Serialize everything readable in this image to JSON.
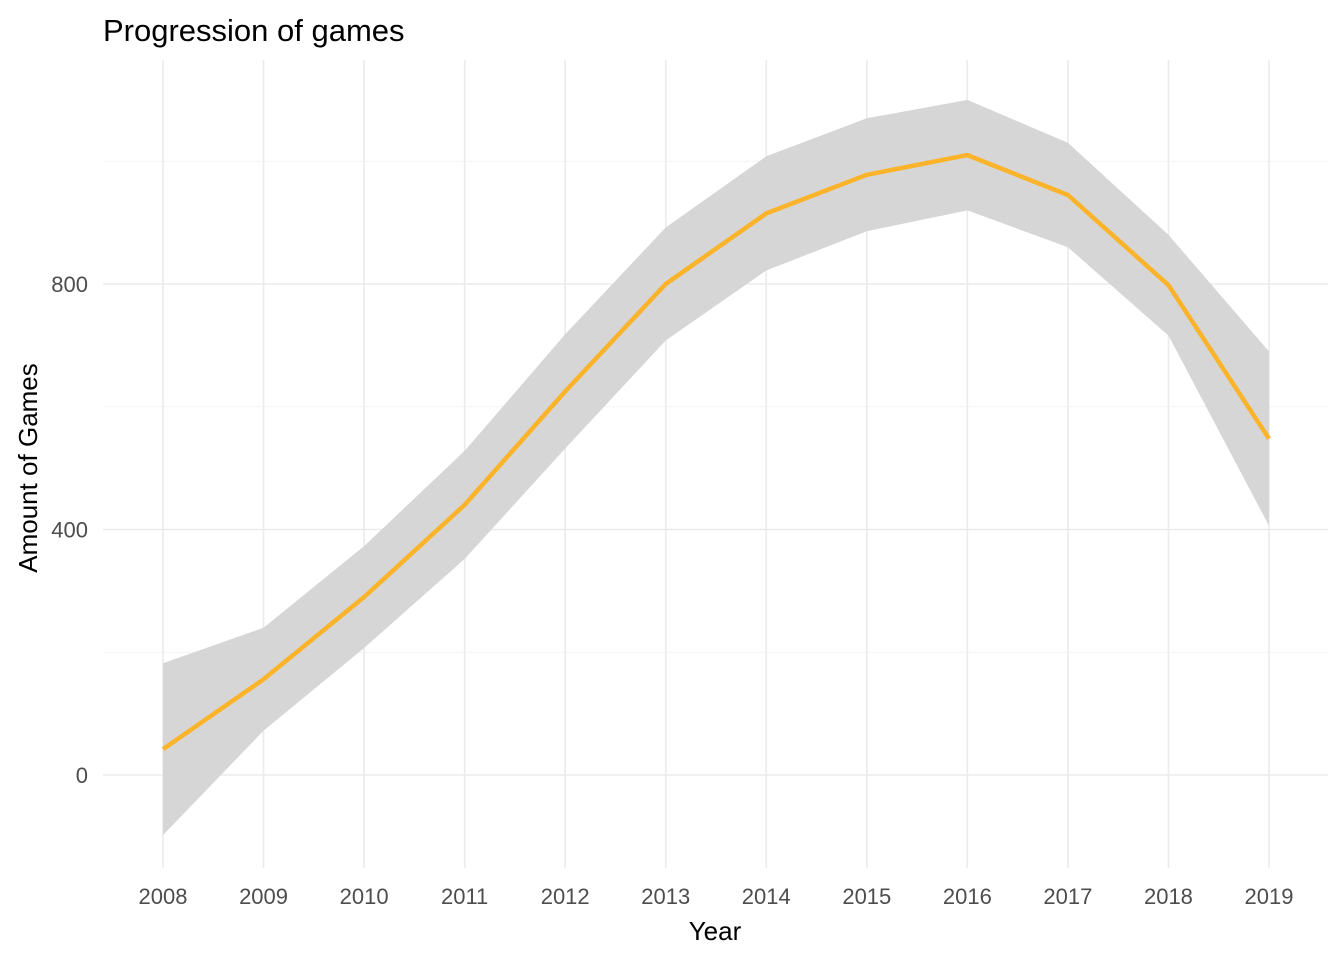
{
  "chart_data": {
    "type": "line",
    "title": "Progression of games",
    "xlabel": "Year",
    "ylabel": "Amount of Games",
    "x": [
      2008,
      2009,
      2010,
      2011,
      2012,
      2013,
      2014,
      2015,
      2016,
      2017,
      2018,
      2019
    ],
    "x_ticks": [
      "2008",
      "2009",
      "2010",
      "2011",
      "2012",
      "2013",
      "2014",
      "2015",
      "2016",
      "2017",
      "2018",
      "2019"
    ],
    "y_ticks": [
      "0",
      "400",
      "800"
    ],
    "y_tick_values": [
      0,
      400,
      800
    ],
    "y_minor_values": [
      200,
      600,
      1000
    ],
    "ylim": [
      -150,
      1150
    ],
    "series": [
      {
        "values": [
          42,
          156,
          290,
          440,
          625,
          800,
          915,
          978,
          1010,
          945,
          798,
          548
        ],
        "ci_upper": [
          182,
          240,
          373,
          528,
          718,
          892,
          1008,
          1070,
          1100,
          1030,
          880,
          690
        ],
        "ci_lower": [
          -98,
          72,
          207,
          352,
          532,
          708,
          822,
          886,
          920,
          860,
          716,
          406
        ],
        "color": "#FBB32A",
        "band_color": "#d6d6d6"
      }
    ],
    "grid": true,
    "legend": "none"
  }
}
